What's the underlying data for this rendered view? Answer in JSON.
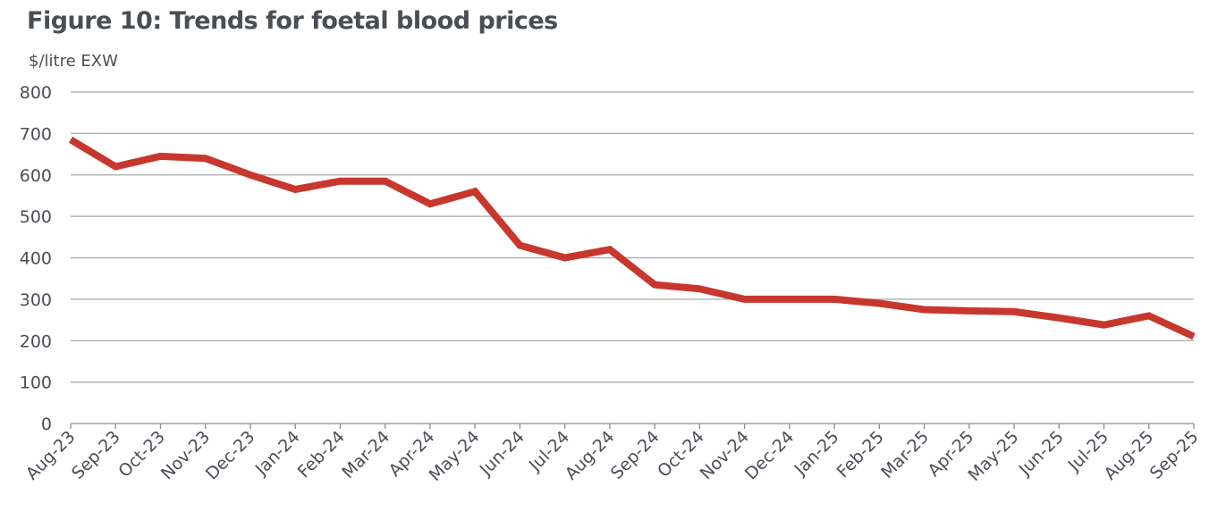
{
  "chart_data": {
    "type": "line",
    "title": "Figure 10: Trends for foetal blood prices",
    "ylabel": "$/litre EXW",
    "xlabel": "",
    "ylim": [
      0,
      800
    ],
    "yticks": [
      0,
      100,
      200,
      300,
      400,
      500,
      600,
      700,
      800
    ],
    "grid": true,
    "line_color": "#c8372d",
    "categories": [
      "Aug-23",
      "Sep-23",
      "Oct-23",
      "Nov-23",
      "Dec-23",
      "Jan-24",
      "Feb-24",
      "Mar-24",
      "Apr-24",
      "May-24",
      "Jun-24",
      "Jul-24",
      "Aug-24",
      "Sep-24",
      "Oct-24",
      "Nov-24",
      "Dec-24",
      "Jan-25",
      "Feb-25",
      "Mar-25",
      "Apr-25",
      "May-25",
      "Jun-25",
      "Jul-25",
      "Aug-25",
      "Sep-25"
    ],
    "values": [
      685,
      620,
      645,
      640,
      600,
      565,
      585,
      585,
      530,
      560,
      430,
      400,
      420,
      335,
      325,
      300,
      300,
      300,
      290,
      275,
      272,
      270,
      255,
      238,
      260,
      210
    ]
  }
}
